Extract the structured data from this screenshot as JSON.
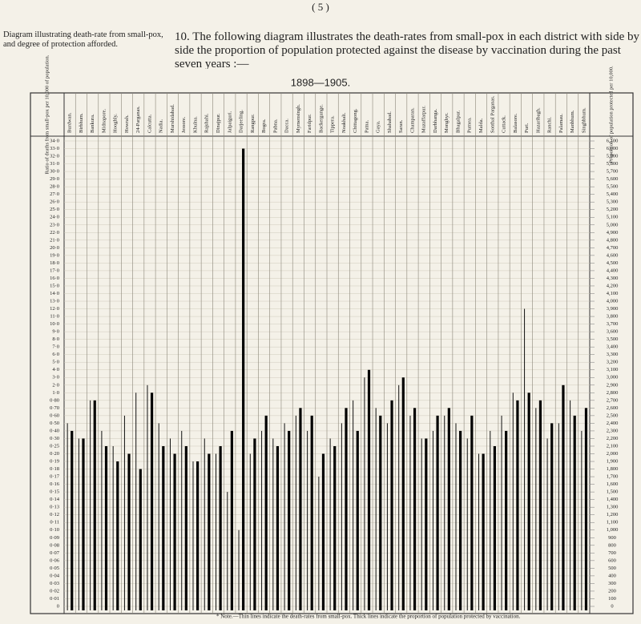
{
  "page_number": "( 5 )",
  "caption_left": "Diagram illustrating death-rate from small-pox, and degree of protection afforded.",
  "heading": "10. The following diagram illustrates the death-rates from small-pox in each district with side by side the proportion of population protected against the disease by vaccination during the past seven years :—",
  "chart_data": {
    "type": "bar",
    "title": "1898—1905.",
    "categories": [
      "Burdwan.",
      "Birbhum.",
      "Bankura.",
      "Midnapore.",
      "Hooghly.",
      "Howrah.",
      "24-Parganas.",
      "Calcutta.",
      "Nadia.",
      "Murshidabad.",
      "Jessore.",
      "Khulna.",
      "Rajshahi.",
      "Dinajpur.",
      "Jalpaiguri.",
      "Darjeeling.",
      "Rangpur.",
      "Bogra.",
      "Pabna.",
      "Dacca.",
      "Mymensingh.",
      "Faridpur.",
      "Backergunge.",
      "Tippera.",
      "Noakhali.",
      "Chittagong.",
      "Patna.",
      "Gaya.",
      "Shahabad.",
      "Saran.",
      "Champaran.",
      "Muzaffarpur.",
      "Darbhanga.",
      "Monghyr.",
      "Bhagalpur.",
      "Purnea.",
      "Malda.",
      "Sonthal Parganas.",
      "Cuttack.",
      "Balasore.",
      "Puri.",
      "Hazaribagh.",
      "Ranchi.",
      "Palamau.",
      "Manbhum.",
      "Singhbhum."
    ],
    "series": [
      {
        "name": "Ratio of deaths from small-pox per 10,000 of population.",
        "color": "#111111",
        "values": [
          0.5,
          0.3,
          0.8,
          0.4,
          0.25,
          0.6,
          1.0,
          2.0,
          0.5,
          0.3,
          0.4,
          0.19,
          0.3,
          0.2,
          0.15,
          0.1,
          0.2,
          0.4,
          0.3,
          0.5,
          0.6,
          0.4,
          0.17,
          0.3,
          0.5,
          0.8,
          3.0,
          0.7,
          0.5,
          2.0,
          0.6,
          0.3,
          0.4,
          0.6,
          0.5,
          0.3,
          0.2,
          0.4,
          0.6,
          1.0,
          12.0,
          0.7,
          0.3,
          0.5,
          0.8,
          0.4
        ]
      },
      {
        "name": "Proportion of population protected per 10,000.",
        "color": "#000000",
        "axis": "y2",
        "values": [
          2300,
          2200,
          2700,
          2100,
          1900,
          2000,
          1800,
          2800,
          2100,
          2000,
          2100,
          1900,
          2000,
          2100,
          2300,
          6000,
          2200,
          2500,
          2100,
          2300,
          2600,
          2500,
          2000,
          2100,
          2600,
          2300,
          3100,
          2500,
          2700,
          3000,
          2600,
          2200,
          2500,
          2600,
          2300,
          2500,
          2000,
          2100,
          2300,
          2700,
          2800,
          2700,
          2400,
          2900,
          2500,
          2600
        ]
      }
    ],
    "yticks": [
      {
        "value": 34,
        "label": "34·0"
      },
      {
        "value": 33,
        "label": "33·0"
      },
      {
        "value": 32,
        "label": "32·0"
      },
      {
        "value": 31,
        "label": "31·0"
      },
      {
        "value": 30,
        "label": "30·0"
      },
      {
        "value": 29,
        "label": "29·0"
      },
      {
        "value": 28,
        "label": "28·0"
      },
      {
        "value": 27,
        "label": "27·0"
      },
      {
        "value": 26,
        "label": "26·0"
      },
      {
        "value": 25,
        "label": "25·0"
      },
      {
        "value": 24,
        "label": "24·0"
      },
      {
        "value": 23,
        "label": "23·0"
      },
      {
        "value": 22,
        "label": "22·0"
      },
      {
        "value": 21,
        "label": "21·0"
      },
      {
        "value": 20,
        "label": "20·0"
      },
      {
        "value": 19,
        "label": "19·0"
      },
      {
        "value": 18,
        "label": "18·0"
      },
      {
        "value": 17,
        "label": "17·0"
      },
      {
        "value": 16,
        "label": "16·0"
      },
      {
        "value": 15,
        "label": "15·0"
      },
      {
        "value": 14,
        "label": "14·0"
      },
      {
        "value": 13,
        "label": "13·0"
      },
      {
        "value": 12,
        "label": "12·0"
      },
      {
        "value": 11,
        "label": "11·0"
      },
      {
        "value": 10,
        "label": "10·0"
      },
      {
        "value": 9,
        "label": "9·0"
      },
      {
        "value": 8,
        "label": "8·0"
      },
      {
        "value": 7,
        "label": "7·0"
      },
      {
        "value": 6,
        "label": "6·0"
      },
      {
        "value": 5,
        "label": "5·0"
      },
      {
        "value": 4,
        "label": "4·0"
      },
      {
        "value": 3,
        "label": "3·0"
      },
      {
        "value": 2,
        "label": "2·0"
      },
      {
        "value": 1,
        "label": "1·0"
      },
      {
        "value": 0.8,
        "label": "0·80"
      },
      {
        "value": 0.7,
        "label": "0·70"
      },
      {
        "value": 0.6,
        "label": "0·60"
      },
      {
        "value": 0.5,
        "label": "0·50"
      },
      {
        "value": 0.4,
        "label": "0·40"
      },
      {
        "value": 0.3,
        "label": "0·30"
      },
      {
        "value": 0.25,
        "label": "0·25"
      },
      {
        "value": 0.2,
        "label": "0·20"
      },
      {
        "value": 0.19,
        "label": "0·19"
      },
      {
        "value": 0.18,
        "label": "0·18"
      },
      {
        "value": 0.17,
        "label": "0·17"
      },
      {
        "value": 0.16,
        "label": "0·16"
      },
      {
        "value": 0.15,
        "label": "0·15"
      },
      {
        "value": 0.14,
        "label": "0·14"
      },
      {
        "value": 0.13,
        "label": "0·13"
      },
      {
        "value": 0.12,
        "label": "0·12"
      },
      {
        "value": 0.11,
        "label": "0·11"
      },
      {
        "value": 0.1,
        "label": "0·10"
      },
      {
        "value": 0.09,
        "label": "0·09"
      },
      {
        "value": 0.08,
        "label": "0·08"
      },
      {
        "value": 0.07,
        "label": "0·07"
      },
      {
        "value": 0.06,
        "label": "0·06"
      },
      {
        "value": 0.05,
        "label": "0·05"
      },
      {
        "value": 0.04,
        "label": "0·04"
      },
      {
        "value": 0.03,
        "label": "0·03"
      },
      {
        "value": 0.02,
        "label": "0·02"
      },
      {
        "value": 0.01,
        "label": "0·01"
      },
      0
    ],
    "y2lim": [
      0,
      6100
    ],
    "y2ticks": [
      {
        "value": 6100,
        "label": "6,100"
      },
      {
        "value": 6000,
        "label": "6,000"
      },
      {
        "value": 5900,
        "label": "5,900"
      },
      {
        "value": 5800,
        "label": "5,800"
      },
      {
        "value": 5700,
        "label": "5,700"
      },
      {
        "value": 5600,
        "label": "5,600"
      },
      {
        "value": 5500,
        "label": "5,500"
      },
      {
        "value": 5400,
        "label": "5,400"
      },
      {
        "value": 5300,
        "label": "5,300"
      },
      {
        "value": 5200,
        "label": "5,200"
      },
      {
        "value": 5100,
        "label": "5,100"
      },
      {
        "value": 5000,
        "label": "5,000"
      },
      {
        "value": 4900,
        "label": "4,900"
      },
      {
        "value": 4800,
        "label": "4,800"
      },
      {
        "value": 4700,
        "label": "4,700"
      },
      {
        "value": 4600,
        "label": "4,600"
      },
      {
        "value": 4500,
        "label": "4,500"
      },
      {
        "value": 4400,
        "label": "4,400"
      },
      {
        "value": 4300,
        "label": "4,300"
      },
      {
        "value": 4200,
        "label": "4,200"
      },
      {
        "value": 4100,
        "label": "4,100"
      },
      {
        "value": 4000,
        "label": "4,000"
      },
      {
        "value": 3900,
        "label": "3,900"
      },
      {
        "value": 3800,
        "label": "3,800"
      },
      {
        "value": 3700,
        "label": "3,700"
      },
      {
        "value": 3600,
        "label": "3,600"
      },
      {
        "value": 3500,
        "label": "3,500"
      },
      {
        "value": 3400,
        "label": "3,400"
      },
      {
        "value": 3300,
        "label": "3,300"
      },
      {
        "value": 3200,
        "label": "3,200"
      },
      {
        "value": 3100,
        "label": "3,100"
      },
      {
        "value": 3000,
        "label": "3,000"
      },
      {
        "value": 2900,
        "label": "2,900"
      },
      {
        "value": 2800,
        "label": "2,800"
      },
      {
        "value": 2700,
        "label": "2,700"
      },
      {
        "value": 2600,
        "label": "2,600"
      },
      {
        "value": 2500,
        "label": "2,500"
      },
      {
        "value": 2400,
        "label": "2,400"
      },
      {
        "value": 2300,
        "label": "2,300"
      },
      {
        "value": 2200,
        "label": "2,200"
      },
      {
        "value": 2100,
        "label": "2,100"
      },
      {
        "value": 2000,
        "label": "2,000"
      },
      {
        "value": 1900,
        "label": "1,900"
      },
      {
        "value": 1800,
        "label": "1,800"
      },
      {
        "value": 1700,
        "label": "1,700"
      },
      {
        "value": 1600,
        "label": "1,600"
      },
      {
        "value": 1500,
        "label": "1,500"
      },
      {
        "value": 1400,
        "label": "1,400"
      },
      {
        "value": 1300,
        "label": "1,300"
      },
      {
        "value": 1200,
        "label": "1,200"
      },
      {
        "value": 1100,
        "label": "1,100"
      },
      {
        "value": 1000,
        "label": "1,000"
      },
      900,
      800,
      700,
      600,
      500,
      400,
      300,
      200,
      100,
      0
    ],
    "grid": true,
    "note": "* Note.—Thin lines indicate the death-rates from small-pox. Thick lines indicate the proportion of population protected by vaccination."
  }
}
